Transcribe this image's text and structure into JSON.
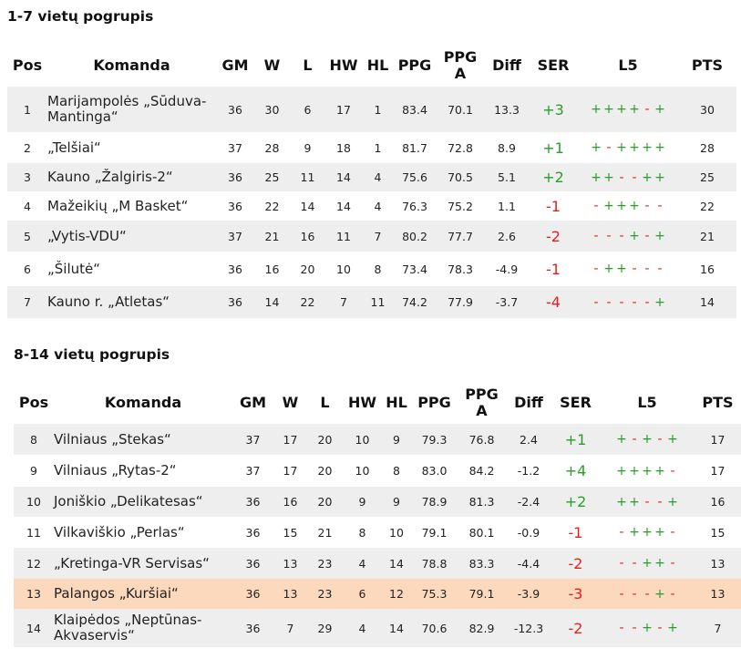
{
  "headers": {
    "pos": "Pos",
    "team": "Komanda",
    "gm": "GM",
    "w": "W",
    "l": "L",
    "hw": "HW",
    "hl": "HL",
    "ppg": "PPG",
    "ppga_1": "PPG",
    "ppga_2": "A",
    "diff": "Diff",
    "ser": "SER",
    "l5": "L5",
    "pts": "PTS"
  },
  "colors": {
    "win": "#2a9d2a",
    "loss": "#e02020",
    "stripe": "#eeeeee",
    "highlight": "#fcd8bc"
  },
  "groups": [
    {
      "title": "1-7 vietų pogrupis",
      "rows": [
        {
          "pos": "1",
          "team": "Marijampolės „Sūduva-Mantinga“",
          "gm": "36",
          "w": "30",
          "l": "6",
          "hw": "17",
          "hl": "1",
          "ppg": "83.4",
          "ppga": "70.1",
          "diff": "13.3",
          "ser": "+3",
          "l5": "+ + + + - +",
          "pts": "30"
        },
        {
          "pos": "2",
          "team": "„Telšiai“",
          "gm": "37",
          "w": "28",
          "l": "9",
          "hw": "18",
          "hl": "1",
          "ppg": "81.7",
          "ppga": "72.8",
          "diff": "8.9",
          "ser": "+1",
          "l5": "+ - + + + +",
          "pts": "28"
        },
        {
          "pos": "3",
          "team": "Kauno „Žalgiris-2“",
          "gm": "36",
          "w": "25",
          "l": "11",
          "hw": "14",
          "hl": "4",
          "ppg": "75.6",
          "ppga": "70.5",
          "diff": "5.1",
          "ser": "+2",
          "l5": "+ + - - + +",
          "pts": "25"
        },
        {
          "pos": "4",
          "team": "Mažeikių „M Basket“",
          "gm": "36",
          "w": "22",
          "l": "14",
          "hw": "14",
          "hl": "4",
          "ppg": "76.3",
          "ppga": "75.2",
          "diff": "1.1",
          "ser": "-1",
          "l5": "- + + + - -",
          "pts": "22"
        },
        {
          "pos": "5",
          "team": "„Vytis-VDU“",
          "gm": "37",
          "w": "21",
          "l": "16",
          "hw": "11",
          "hl": "7",
          "ppg": "80.2",
          "ppga": "77.7",
          "diff": "2.6",
          "ser": "-2",
          "l5": "- - - + - +",
          "pts": "21"
        },
        {
          "pos": "6",
          "team": "„Šilutė“",
          "gm": "36",
          "w": "16",
          "l": "20",
          "hw": "10",
          "hl": "8",
          "ppg": "73.4",
          "ppga": "78.3",
          "diff": "-4.9",
          "ser": "-1",
          "l5": "- + + - - -",
          "pts": "16"
        },
        {
          "pos": "7",
          "team": "Kauno r. „Atletas“",
          "gm": "36",
          "w": "14",
          "l": "22",
          "hw": "7",
          "hl": "11",
          "ppg": "74.2",
          "ppga": "77.9",
          "diff": "-3.7",
          "ser": "-4",
          "l5": "- - - - - +",
          "pts": "14"
        }
      ]
    },
    {
      "title": "8-14 vietų pogrupis",
      "rows": [
        {
          "pos": "8",
          "team": "Vilniaus „Stekas“",
          "gm": "37",
          "w": "17",
          "l": "20",
          "hw": "10",
          "hl": "9",
          "ppg": "79.3",
          "ppga": "76.8",
          "diff": "2.4",
          "ser": "+1",
          "l5": "+ - + - +",
          "pts": "17"
        },
        {
          "pos": "9",
          "team": "Vilniaus „Rytas-2“",
          "gm": "37",
          "w": "17",
          "l": "20",
          "hw": "10",
          "hl": "8",
          "ppg": "83.0",
          "ppga": "84.2",
          "diff": "-1.2",
          "ser": "+4",
          "l5": "+ + + + -",
          "pts": "17"
        },
        {
          "pos": "10",
          "team": "Joniškio „Delikatesas“",
          "gm": "36",
          "w": "16",
          "l": "20",
          "hw": "9",
          "hl": "9",
          "ppg": "78.9",
          "ppga": "81.3",
          "diff": "-2.4",
          "ser": "+2",
          "l5": "+ + - - +",
          "pts": "16"
        },
        {
          "pos": "11",
          "team": "Vilkaviškio „Perlas“",
          "gm": "36",
          "w": "15",
          "l": "21",
          "hw": "8",
          "hl": "10",
          "ppg": "79.1",
          "ppga": "80.1",
          "diff": "-0.9",
          "ser": "-1",
          "l5": "- + + + -",
          "pts": "15"
        },
        {
          "pos": "12",
          "team": "„Kretinga-VR Servisas“",
          "gm": "36",
          "w": "13",
          "l": "23",
          "hw": "4",
          "hl": "14",
          "ppg": "78.8",
          "ppga": "83.3",
          "diff": "-4.4",
          "ser": "-2",
          "l5": "- - + + -",
          "pts": "13"
        },
        {
          "pos": "13",
          "team": "Palangos „Kuršiai“",
          "gm": "36",
          "w": "13",
          "l": "23",
          "hw": "6",
          "hl": "12",
          "ppg": "75.3",
          "ppga": "79.1",
          "diff": "-3.9",
          "ser": "-3",
          "l5": "- - - + -",
          "pts": "13",
          "highlight": true
        },
        {
          "pos": "14",
          "team": "Klaipėdos „Neptūnas-Akvaservis“",
          "gm": "36",
          "w": "7",
          "l": "29",
          "hw": "4",
          "hl": "14",
          "ppg": "70.6",
          "ppga": "82.9",
          "diff": "-12.3",
          "ser": "-2",
          "l5": "- - + - +",
          "pts": "7"
        }
      ]
    }
  ]
}
